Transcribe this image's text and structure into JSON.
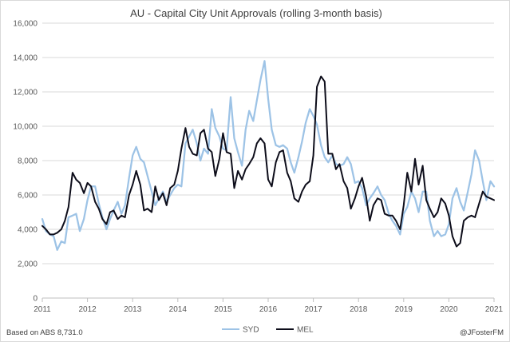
{
  "chart_data": {
    "type": "line",
    "title": "AU - Capital City Unit Approvals (rolling 3-month basis)",
    "xlabel": "",
    "ylabel": "",
    "xlim": [
      2011,
      2021
    ],
    "ylim": [
      0,
      16000
    ],
    "x_ticks": [
      2011,
      2012,
      2013,
      2014,
      2015,
      2016,
      2017,
      2018,
      2019,
      2020,
      2021
    ],
    "x_tick_labels": [
      "2011",
      "2012",
      "2013",
      "2014",
      "2015",
      "2016",
      "2017",
      "2018",
      "2019",
      "2020",
      "2021"
    ],
    "y_ticks": [
      0,
      2000,
      4000,
      6000,
      8000,
      10000,
      12000,
      14000,
      16000
    ],
    "y_tick_labels": [
      "0",
      "2,000",
      "4,000",
      "6,000",
      "8,000",
      "10,000",
      "12,000",
      "14,000",
      "16,000"
    ],
    "grid": "horizontal",
    "legend_position": "bottom",
    "series": [
      {
        "name": "SYD",
        "color": "#9dc3e6",
        "points": [
          [
            2011.0,
            4600
          ],
          [
            2011.08,
            3900
          ],
          [
            2011.17,
            3700
          ],
          [
            2011.25,
            3600
          ],
          [
            2011.33,
            2800
          ],
          [
            2011.42,
            3300
          ],
          [
            2011.5,
            3200
          ],
          [
            2011.58,
            4700
          ],
          [
            2011.67,
            4800
          ],
          [
            2011.75,
            4900
          ],
          [
            2011.83,
            3900
          ],
          [
            2011.92,
            4600
          ],
          [
            2012.0,
            5700
          ],
          [
            2012.08,
            6500
          ],
          [
            2012.17,
            6500
          ],
          [
            2012.25,
            5500
          ],
          [
            2012.33,
            4700
          ],
          [
            2012.42,
            4000
          ],
          [
            2012.5,
            4600
          ],
          [
            2012.58,
            5100
          ],
          [
            2012.67,
            5600
          ],
          [
            2012.75,
            4900
          ],
          [
            2012.83,
            5400
          ],
          [
            2012.92,
            7000
          ],
          [
            2013.0,
            8300
          ],
          [
            2013.08,
            8800
          ],
          [
            2013.17,
            8100
          ],
          [
            2013.25,
            7900
          ],
          [
            2013.33,
            7100
          ],
          [
            2013.42,
            6200
          ],
          [
            2013.5,
            5400
          ],
          [
            2013.58,
            5800
          ],
          [
            2013.67,
            6200
          ],
          [
            2013.75,
            5600
          ],
          [
            2013.83,
            6000
          ],
          [
            2013.92,
            6400
          ],
          [
            2014.0,
            6600
          ],
          [
            2014.08,
            6500
          ],
          [
            2014.17,
            9000
          ],
          [
            2014.25,
            9400
          ],
          [
            2014.33,
            9800
          ],
          [
            2014.42,
            9000
          ],
          [
            2014.5,
            8000
          ],
          [
            2014.58,
            8700
          ],
          [
            2014.67,
            8400
          ],
          [
            2014.75,
            11000
          ],
          [
            2014.83,
            9900
          ],
          [
            2014.92,
            9400
          ],
          [
            2015.0,
            8700
          ],
          [
            2015.08,
            8600
          ],
          [
            2015.17,
            11700
          ],
          [
            2015.25,
            9300
          ],
          [
            2015.33,
            8500
          ],
          [
            2015.42,
            7700
          ],
          [
            2015.5,
            9800
          ],
          [
            2015.58,
            10900
          ],
          [
            2015.67,
            10300
          ],
          [
            2015.75,
            11500
          ],
          [
            2015.83,
            12700
          ],
          [
            2015.92,
            13800
          ],
          [
            2016.0,
            11600
          ],
          [
            2016.08,
            9800
          ],
          [
            2016.17,
            8900
          ],
          [
            2016.25,
            8800
          ],
          [
            2016.33,
            8900
          ],
          [
            2016.42,
            8700
          ],
          [
            2016.5,
            7900
          ],
          [
            2016.58,
            7300
          ],
          [
            2016.67,
            8200
          ],
          [
            2016.75,
            9100
          ],
          [
            2016.83,
            10200
          ],
          [
            2016.92,
            11000
          ],
          [
            2017.0,
            10600
          ],
          [
            2017.08,
            10100
          ],
          [
            2017.17,
            8900
          ],
          [
            2017.25,
            8200
          ],
          [
            2017.33,
            7900
          ],
          [
            2017.42,
            8300
          ],
          [
            2017.5,
            7800
          ],
          [
            2017.58,
            7700
          ],
          [
            2017.67,
            7800
          ],
          [
            2017.75,
            8200
          ],
          [
            2017.83,
            7800
          ],
          [
            2017.92,
            6700
          ],
          [
            2018.0,
            6800
          ],
          [
            2018.08,
            6400
          ],
          [
            2018.17,
            5400
          ],
          [
            2018.25,
            5800
          ],
          [
            2018.33,
            6100
          ],
          [
            2018.42,
            6500
          ],
          [
            2018.5,
            6000
          ],
          [
            2018.58,
            5700
          ],
          [
            2018.67,
            4900
          ],
          [
            2018.75,
            4500
          ],
          [
            2018.83,
            4200
          ],
          [
            2018.92,
            3700
          ],
          [
            2019.0,
            4900
          ],
          [
            2019.08,
            5300
          ],
          [
            2019.17,
            6200
          ],
          [
            2019.25,
            5800
          ],
          [
            2019.33,
            5000
          ],
          [
            2019.42,
            6200
          ],
          [
            2019.5,
            6200
          ],
          [
            2019.58,
            4500
          ],
          [
            2019.67,
            3600
          ],
          [
            2019.75,
            3900
          ],
          [
            2019.83,
            3600
          ],
          [
            2019.92,
            3700
          ],
          [
            2020.0,
            4300
          ],
          [
            2020.08,
            5800
          ],
          [
            2020.17,
            6400
          ],
          [
            2020.25,
            5600
          ],
          [
            2020.33,
            5100
          ],
          [
            2020.42,
            6200
          ],
          [
            2020.5,
            7200
          ],
          [
            2020.58,
            8600
          ],
          [
            2020.67,
            8000
          ],
          [
            2020.75,
            6800
          ],
          [
            2020.83,
            5700
          ],
          [
            2020.92,
            6800
          ],
          [
            2021.0,
            6500
          ]
        ]
      },
      {
        "name": "MEL",
        "color": "#0d0d1a",
        "points": [
          [
            2011.0,
            4200
          ],
          [
            2011.08,
            4000
          ],
          [
            2011.17,
            3700
          ],
          [
            2011.25,
            3700
          ],
          [
            2011.33,
            3800
          ],
          [
            2011.42,
            4000
          ],
          [
            2011.5,
            4500
          ],
          [
            2011.58,
            5300
          ],
          [
            2011.67,
            7300
          ],
          [
            2011.75,
            6900
          ],
          [
            2011.83,
            6700
          ],
          [
            2011.92,
            6100
          ],
          [
            2012.0,
            6700
          ],
          [
            2012.08,
            6500
          ],
          [
            2012.17,
            5600
          ],
          [
            2012.25,
            5200
          ],
          [
            2012.33,
            4600
          ],
          [
            2012.42,
            4300
          ],
          [
            2012.5,
            5000
          ],
          [
            2012.58,
            5100
          ],
          [
            2012.67,
            4600
          ],
          [
            2012.75,
            4800
          ],
          [
            2012.83,
            4700
          ],
          [
            2012.92,
            6000
          ],
          [
            2013.0,
            6600
          ],
          [
            2013.08,
            7400
          ],
          [
            2013.17,
            6600
          ],
          [
            2013.25,
            5100
          ],
          [
            2013.33,
            5200
          ],
          [
            2013.42,
            5000
          ],
          [
            2013.5,
            6500
          ],
          [
            2013.58,
            5700
          ],
          [
            2013.67,
            6100
          ],
          [
            2013.75,
            5400
          ],
          [
            2013.83,
            6400
          ],
          [
            2013.92,
            6600
          ],
          [
            2014.0,
            7400
          ],
          [
            2014.08,
            8700
          ],
          [
            2014.17,
            9900
          ],
          [
            2014.25,
            8800
          ],
          [
            2014.33,
            8400
          ],
          [
            2014.42,
            8300
          ],
          [
            2014.5,
            9600
          ],
          [
            2014.58,
            9800
          ],
          [
            2014.67,
            8700
          ],
          [
            2014.75,
            8500
          ],
          [
            2014.83,
            7100
          ],
          [
            2014.92,
            8100
          ],
          [
            2015.0,
            9600
          ],
          [
            2015.08,
            8500
          ],
          [
            2015.17,
            8400
          ],
          [
            2015.25,
            6400
          ],
          [
            2015.33,
            7400
          ],
          [
            2015.42,
            6900
          ],
          [
            2015.5,
            7500
          ],
          [
            2015.58,
            7800
          ],
          [
            2015.67,
            8200
          ],
          [
            2015.75,
            9000
          ],
          [
            2015.83,
            9300
          ],
          [
            2015.92,
            9000
          ],
          [
            2016.0,
            6900
          ],
          [
            2016.08,
            6500
          ],
          [
            2016.17,
            7900
          ],
          [
            2016.25,
            8500
          ],
          [
            2016.33,
            8600
          ],
          [
            2016.42,
            7300
          ],
          [
            2016.5,
            6800
          ],
          [
            2016.58,
            5800
          ],
          [
            2016.67,
            5600
          ],
          [
            2016.75,
            6200
          ],
          [
            2016.83,
            6600
          ],
          [
            2016.92,
            6800
          ],
          [
            2017.0,
            8300
          ],
          [
            2017.08,
            12300
          ],
          [
            2017.17,
            12900
          ],
          [
            2017.25,
            12600
          ],
          [
            2017.33,
            8400
          ],
          [
            2017.42,
            8400
          ],
          [
            2017.5,
            7500
          ],
          [
            2017.58,
            7800
          ],
          [
            2017.67,
            6800
          ],
          [
            2017.75,
            6400
          ],
          [
            2017.83,
            5200
          ],
          [
            2017.92,
            5800
          ],
          [
            2018.0,
            6500
          ],
          [
            2018.08,
            7000
          ],
          [
            2018.17,
            5900
          ],
          [
            2018.25,
            4500
          ],
          [
            2018.33,
            5400
          ],
          [
            2018.42,
            5800
          ],
          [
            2018.5,
            5700
          ],
          [
            2018.58,
            4900
          ],
          [
            2018.67,
            4800
          ],
          [
            2018.75,
            4800
          ],
          [
            2018.83,
            4500
          ],
          [
            2018.92,
            4000
          ],
          [
            2019.0,
            5400
          ],
          [
            2019.08,
            7300
          ],
          [
            2019.17,
            6200
          ],
          [
            2019.25,
            8100
          ],
          [
            2019.33,
            6600
          ],
          [
            2019.42,
            7700
          ],
          [
            2019.5,
            5700
          ],
          [
            2019.58,
            5200
          ],
          [
            2019.67,
            4700
          ],
          [
            2019.75,
            5000
          ],
          [
            2019.83,
            5800
          ],
          [
            2019.92,
            5500
          ],
          [
            2020.0,
            4800
          ],
          [
            2020.08,
            3600
          ],
          [
            2020.17,
            3000
          ],
          [
            2020.25,
            3200
          ],
          [
            2020.33,
            4500
          ],
          [
            2020.42,
            4700
          ],
          [
            2020.5,
            4800
          ],
          [
            2020.58,
            4700
          ],
          [
            2020.67,
            5500
          ],
          [
            2020.75,
            6200
          ],
          [
            2020.83,
            5900
          ],
          [
            2020.92,
            5800
          ],
          [
            2021.0,
            5700
          ]
        ]
      }
    ],
    "footnote_left": "Based on ABS 8,731.0",
    "footnote_right": "@JFosterFM"
  }
}
